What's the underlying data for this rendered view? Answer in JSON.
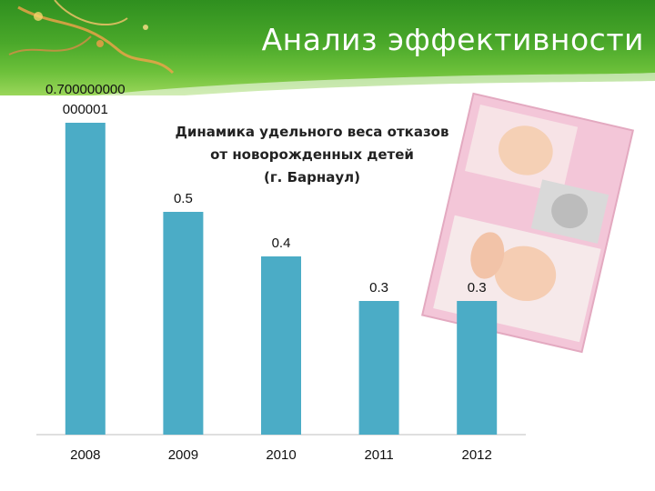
{
  "slide": {
    "title": "Анализ эффективности"
  },
  "decor": {
    "header_color": "#4aa82a",
    "photo_frame_color": "#f3c6d8",
    "photo_collage_icon": "baby-photo-collage"
  },
  "chart_data": {
    "type": "bar",
    "title_lines": [
      "Динамика удельного веса отказов",
      "от новорожденных детей",
      "(г. Барнаул)"
    ],
    "categories": [
      "2008",
      "2009",
      "2010",
      "2011",
      "2012"
    ],
    "values": [
      0.7,
      0.5,
      0.4,
      0.3,
      0.3
    ],
    "value_labels": [
      [
        "0.700000000",
        "000001"
      ],
      [
        "0.5"
      ],
      [
        "0.4"
      ],
      [
        "0.3"
      ],
      [
        "0.3"
      ]
    ],
    "bar_color": "#4bacc6",
    "ylim": [
      0,
      0.8
    ],
    "grid": false,
    "legend": "none"
  }
}
